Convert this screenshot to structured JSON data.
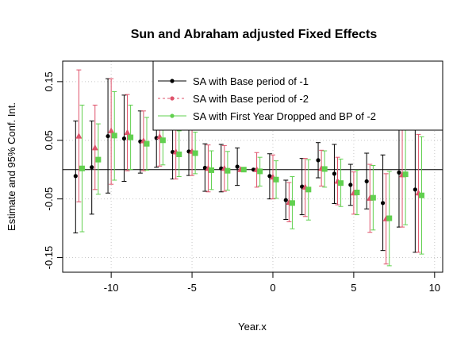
{
  "chart_data": {
    "type": "scatter",
    "title": "Sun and Abraham adjusted Fixed Effects",
    "xlabel": "Year.x",
    "ylabel": "Estimate and 95% Conf. Int.",
    "xlim": [
      -13,
      10.5
    ],
    "ylim": [
      -0.175,
      0.185
    ],
    "xticks": [
      -10,
      -5,
      0,
      5,
      10
    ],
    "xtick_labels": [
      "-10",
      "-5",
      "0",
      "5",
      "10"
    ],
    "yticks": [
      -0.15,
      -0.05,
      0.05,
      0.15
    ],
    "ytick_labels": [
      "-0.15",
      "-0.05",
      "0.05",
      "0.15"
    ],
    "hline": 0,
    "grid": true,
    "legend_position": "top-right",
    "series": [
      {
        "name": "SA with Base period of -1",
        "color": "#000000",
        "marker": "circle",
        "offset": -0.2,
        "points": [
          {
            "x": -12,
            "y": -0.011,
            "lo": -0.108,
            "hi": 0.083
          },
          {
            "x": -11,
            "y": 0.004,
            "lo": -0.076,
            "hi": 0.083
          },
          {
            "x": -10,
            "y": 0.057,
            "lo": -0.04,
            "hi": 0.155
          },
          {
            "x": -9,
            "y": 0.053,
            "lo": -0.02,
            "hi": 0.127
          },
          {
            "x": -8,
            "y": 0.048,
            "lo": -0.006,
            "hi": 0.1
          },
          {
            "x": -7,
            "y": 0.054,
            "lo": 0.004,
            "hi": 0.104
          },
          {
            "x": -6,
            "y": 0.03,
            "lo": -0.016,
            "hi": 0.075
          },
          {
            "x": -5,
            "y": 0.031,
            "lo": -0.01,
            "hi": 0.073
          },
          {
            "x": -4,
            "y": 0.003,
            "lo": -0.037,
            "hi": 0.044
          },
          {
            "x": -3,
            "y": 0.002,
            "lo": -0.038,
            "hi": 0.043
          },
          {
            "x": -2,
            "y": 0.005,
            "lo": -0.027,
            "hi": 0.037
          },
          {
            "x": -1,
            "y": 0.0,
            "lo": 0.0,
            "hi": 0.0
          },
          {
            "x": 0,
            "y": -0.011,
            "lo": -0.05,
            "hi": 0.027
          },
          {
            "x": 1,
            "y": -0.052,
            "lo": -0.085,
            "hi": -0.018
          },
          {
            "x": 2,
            "y": -0.029,
            "lo": -0.077,
            "hi": 0.019
          },
          {
            "x": 3,
            "y": 0.016,
            "lo": -0.014,
            "hi": 0.046
          },
          {
            "x": 4,
            "y": -0.007,
            "lo": -0.058,
            "hi": 0.043
          },
          {
            "x": 5,
            "y": -0.026,
            "lo": -0.061,
            "hi": 0.009
          },
          {
            "x": 6,
            "y": -0.02,
            "lo": -0.067,
            "hi": 0.028
          },
          {
            "x": 7,
            "y": -0.057,
            "lo": -0.138,
            "hi": 0.025
          },
          {
            "x": 8,
            "y": -0.005,
            "lo": -0.098,
            "hi": 0.088
          },
          {
            "x": 9,
            "y": -0.034,
            "lo": -0.141,
            "hi": 0.073
          }
        ]
      },
      {
        "name": "SA with Base period of -2",
        "color": "#df536b",
        "marker": "triangle",
        "offset": 0,
        "points": [
          {
            "x": -12,
            "y": 0.057,
            "lo": -0.055,
            "hi": 0.17
          },
          {
            "x": -11,
            "y": 0.037,
            "lo": -0.034,
            "hi": 0.11
          },
          {
            "x": -10,
            "y": 0.066,
            "lo": -0.025,
            "hi": 0.155
          },
          {
            "x": -9,
            "y": 0.063,
            "lo": -0.002,
            "hi": 0.128
          },
          {
            "x": -8,
            "y": 0.049,
            "lo": -0.002,
            "hi": 0.1
          },
          {
            "x": -7,
            "y": 0.056,
            "lo": 0.006,
            "hi": 0.106
          },
          {
            "x": -6,
            "y": 0.03,
            "lo": -0.016,
            "hi": 0.075
          },
          {
            "x": -5,
            "y": 0.031,
            "lo": -0.01,
            "hi": 0.072
          },
          {
            "x": -4,
            "y": 0.002,
            "lo": -0.038,
            "hi": 0.042
          },
          {
            "x": -3,
            "y": 0.002,
            "lo": -0.037,
            "hi": 0.041
          },
          {
            "x": -2,
            "y": 0.0,
            "lo": 0.0,
            "hi": 0.0
          },
          {
            "x": -1,
            "y": 0.0,
            "lo": -0.03,
            "hi": 0.029
          },
          {
            "x": 0,
            "y": -0.013,
            "lo": -0.05,
            "hi": 0.025
          },
          {
            "x": 1,
            "y": -0.056,
            "lo": -0.089,
            "hi": -0.022
          },
          {
            "x": 2,
            "y": -0.03,
            "lo": -0.08,
            "hi": 0.019
          },
          {
            "x": 3,
            "y": 0.002,
            "lo": -0.028,
            "hi": 0.033
          },
          {
            "x": 4,
            "y": -0.02,
            "lo": -0.06,
            "hi": 0.021
          },
          {
            "x": 5,
            "y": -0.04,
            "lo": -0.076,
            "hi": -0.004
          },
          {
            "x": 6,
            "y": -0.049,
            "lo": -0.107,
            "hi": 0.009
          },
          {
            "x": 7,
            "y": -0.084,
            "lo": -0.161,
            "hi": -0.007
          },
          {
            "x": 8,
            "y": -0.009,
            "lo": -0.098,
            "hi": 0.08
          },
          {
            "x": 9,
            "y": -0.04,
            "lo": -0.141,
            "hi": 0.06
          }
        ]
      },
      {
        "name": "SA with First Year Dropped and BP of -2",
        "color": "#61d04f",
        "marker": "square",
        "offset": 0.2,
        "points": [
          {
            "x": -12,
            "y": 0.002,
            "lo": -0.106,
            "hi": 0.11
          },
          {
            "x": -11,
            "y": 0.017,
            "lo": -0.042,
            "hi": 0.078
          },
          {
            "x": -10,
            "y": 0.058,
            "lo": -0.018,
            "hi": 0.133
          },
          {
            "x": -9,
            "y": 0.055,
            "lo": 0.0,
            "hi": 0.11
          },
          {
            "x": -8,
            "y": 0.044,
            "lo": -0.001,
            "hi": 0.089
          },
          {
            "x": -7,
            "y": 0.05,
            "lo": 0.008,
            "hi": 0.094
          },
          {
            "x": -6,
            "y": 0.026,
            "lo": -0.012,
            "hi": 0.066
          },
          {
            "x": -5,
            "y": 0.028,
            "lo": -0.007,
            "hi": 0.064
          },
          {
            "x": -4,
            "y": -0.001,
            "lo": -0.034,
            "hi": 0.032
          },
          {
            "x": -3,
            "y": -0.002,
            "lo": -0.035,
            "hi": 0.031
          },
          {
            "x": -2,
            "y": 0.0,
            "lo": 0.0,
            "hi": 0.0
          },
          {
            "x": -1,
            "y": -0.003,
            "lo": -0.028,
            "hi": 0.021
          },
          {
            "x": 0,
            "y": -0.017,
            "lo": -0.049,
            "hi": 0.015
          },
          {
            "x": 1,
            "y": -0.057,
            "lo": -0.101,
            "hi": -0.012
          },
          {
            "x": 2,
            "y": -0.034,
            "lo": -0.086,
            "hi": 0.017
          },
          {
            "x": 3,
            "y": 0.001,
            "lo": -0.03,
            "hi": 0.032
          },
          {
            "x": 4,
            "y": -0.023,
            "lo": -0.063,
            "hi": 0.018
          },
          {
            "x": 5,
            "y": -0.039,
            "lo": -0.077,
            "hi": -0.001
          },
          {
            "x": 6,
            "y": -0.048,
            "lo": -0.103,
            "hi": 0.007
          },
          {
            "x": 7,
            "y": -0.083,
            "lo": -0.164,
            "hi": -0.003
          },
          {
            "x": 8,
            "y": -0.008,
            "lo": -0.094,
            "hi": 0.078
          },
          {
            "x": 9,
            "y": -0.044,
            "lo": -0.144,
            "hi": 0.056
          }
        ]
      }
    ]
  }
}
